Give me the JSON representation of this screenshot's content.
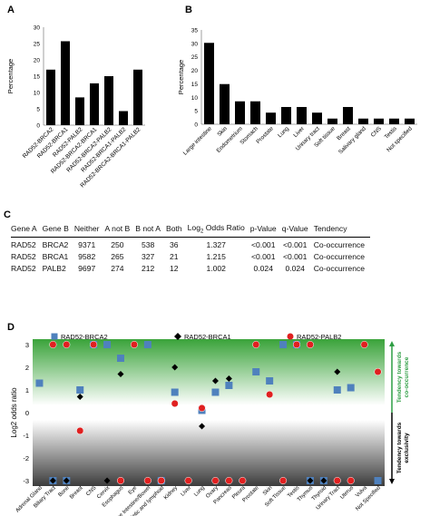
{
  "panel_labels": {
    "a": "A",
    "b": "B",
    "c": "C",
    "d": "D"
  },
  "chart_data": [
    {
      "type": "bar",
      "ylabel": "Percentage",
      "ylim": [
        0,
        30
      ],
      "yticks": [
        0,
        5,
        10,
        15,
        20,
        25,
        30
      ],
      "grid": false,
      "categories": [
        "RAD52-BRCA2",
        "RAD52-BRCA1",
        "RAD52-PALB2",
        "RAD52-BRCA2-BRCA1",
        "RAD52-BRCA2-PALB2",
        "RAD52-BRCA1-PALB2",
        "RAD52-BRCA2-BRCA1-PALB2"
      ],
      "values": [
        17,
        25.7,
        8.5,
        12.8,
        15,
        4.3,
        17
      ]
    },
    {
      "type": "bar",
      "ylabel": "Percentage",
      "ylim": [
        0,
        35
      ],
      "yticks": [
        0,
        5,
        10,
        15,
        20,
        25,
        30,
        35
      ],
      "grid": false,
      "categories": [
        "Large intestine",
        "Skin",
        "Endometrium",
        "Stomach",
        "Prostate",
        "Lung",
        "Liver",
        "Urinary tract",
        "Soft tissue",
        "Breast",
        "Salivary gland",
        "CNS",
        "Testis",
        "Not specified"
      ],
      "values": [
        30.2,
        14.9,
        8.5,
        8.5,
        4.3,
        6.4,
        6.4,
        4.3,
        2.1,
        6.4,
        2.1,
        2.1,
        2.1,
        2.1
      ]
    },
    {
      "type": "table",
      "columns": [
        "Gene A",
        "Gene B",
        "Neither",
        "A not B",
        "B not A",
        "Both",
        "Log2 Odds Ratio",
        "p-Value",
        "q-Value",
        "Tendency"
      ],
      "log_label": {
        "base": "Log",
        "sub": "2",
        "rest": " Odds Ratio"
      },
      "rows": [
        [
          "RAD52",
          "BRCA2",
          "9371",
          "250",
          "538",
          "36",
          "1.327",
          "<0.001",
          "<0.001",
          "Co-occurrence"
        ],
        [
          "RAD52",
          "BRCA1",
          "9582",
          "265",
          "327",
          "21",
          "1.215",
          "<0.001",
          "<0.001",
          "Co-occurrence"
        ],
        [
          "RAD52",
          "PALB2",
          "9697",
          "274",
          "212",
          "12",
          "1.002",
          "0.024",
          "0.024",
          "Co-occurrence"
        ]
      ]
    },
    {
      "type": "scatter",
      "ylabel": "Log2 odds ratio",
      "ylim": [
        -3,
        3
      ],
      "yticks": [
        -3,
        -2,
        -1,
        0,
        1,
        2,
        3
      ],
      "legend_position": "top",
      "annotations": {
        "cooccur_line1": "Tendency towards",
        "cooccur_line2": "co-occurrence",
        "excl_line1": "Tendency towards",
        "excl_line2": "exclusivity"
      },
      "colors": {
        "cooccur": "#2e9e44",
        "brca2": "#4f81bd",
        "brca1": "#000000",
        "palb2": "#e02020"
      },
      "categories": [
        "Adrenal Gland",
        "Biliary Tract",
        "Bone",
        "Breast",
        "CNS",
        "Cervix",
        "Esophagus",
        "Eye",
        "Large Intestine/Bowel",
        "Haematopoietic and lymphoid",
        "Kidney",
        "Liver",
        "Lung",
        "Ovary",
        "Pancreas",
        "Pleura",
        "Prostate",
        "Skin",
        "Soft Tissue",
        "Testis",
        "Thymus",
        "Thyroid",
        "Urinary Tract",
        "Uterus",
        "Vulva",
        "Not Specified"
      ],
      "series": [
        {
          "name": "RAD52-BRCA2",
          "marker": "square",
          "values": [
            1.3,
            -3,
            -3,
            1,
            3,
            3,
            2.4,
            null,
            3,
            -3,
            0.9,
            null,
            0.1,
            0.9,
            1.2,
            null,
            1.8,
            1.4,
            3,
            3,
            -3,
            -3,
            1,
            1.1,
            null,
            -3
          ]
        },
        {
          "name": "RAD52-BRCA1",
          "marker": "diamond",
          "values": [
            null,
            -3,
            -3,
            0.7,
            null,
            -3,
            1.7,
            null,
            null,
            null,
            2,
            null,
            -0.6,
            1.4,
            1.5,
            null,
            null,
            null,
            null,
            null,
            -3,
            -3,
            1.8,
            null,
            null,
            null
          ]
        },
        {
          "name": "RAD52-PALB2",
          "marker": "circle",
          "values": [
            null,
            3,
            3,
            -0.8,
            3,
            null,
            -3,
            3,
            -3,
            -3,
            0.4,
            -3,
            0.2,
            -3,
            -3,
            -3,
            3,
            0.8,
            -3,
            3,
            3,
            null,
            -3,
            -3,
            3,
            1.8
          ]
        }
      ]
    }
  ]
}
